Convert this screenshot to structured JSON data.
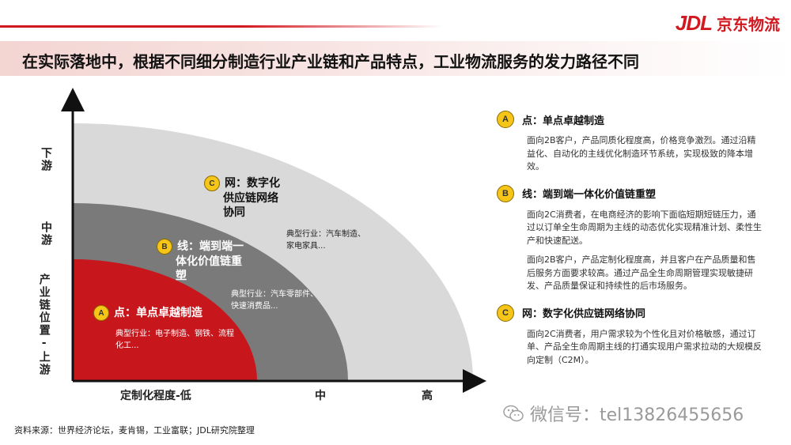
{
  "brand": {
    "logo_mark": "JDL",
    "logo_text": "京东物流",
    "brand_color": "#d31920"
  },
  "title": "在实际落地中，根据不同细分制造行业产业链和产品特点，工业物流服务的发力路径不同",
  "axes": {
    "y_top": "下游",
    "y_mid": "中游",
    "y_bottom": "产业链位置-上游",
    "x_low": "定制化程度-低",
    "x_mid": "中",
    "x_high": "高"
  },
  "zones": {
    "a": {
      "badge": "A",
      "label": "点：单点卓越制造",
      "industries": "典型行业：电子制造、钢铁、流程化工...",
      "color": "#c8161d"
    },
    "b": {
      "badge": "B",
      "label_l1": "线：端到端一",
      "label_l2": "体化价值链重",
      "label_l3": "塑",
      "industries_l1": "典型行业：汽车零部件、",
      "industries_l2": "快速消费品...",
      "color": "#7a7a7a"
    },
    "c": {
      "badge": "C",
      "label_l1": "网：数字化",
      "label_l2": "供应链网络",
      "label_l3": "协同",
      "industries_l1": "典型行业：汽车制造、",
      "industries_l2": "家电家具...",
      "color": "#d9d9d9"
    }
  },
  "panel": {
    "a": {
      "badge": "A",
      "heading": "点：单点卓越制造",
      "text": "面向2B客户，产品同质化程度高，价格竞争激烈。通过沿精益化、自动化的主线优化制造环节系统，实现极致的降本增效。"
    },
    "b": {
      "badge": "B",
      "heading": "线：端到端一体化价值链重塑",
      "text1": "面向2C消费者，在电商经济的影响下面临短期短链压力，通过以订单全生命周期为主线的动态优化实现精准计划、柔性生产和快速配送。",
      "text2": "面向2B客户，产品定制化程度高，并且客户在产品质量和售后服务方面要求较高。通过产品全生命周期管理实现敏捷研发、产品质量保证和持续性的后市场服务。"
    },
    "c": {
      "badge": "C",
      "heading": "网：数字化供应链网络协同",
      "text": "面向2C消费者，用户需求较为个性化且对价格敏感，通过订单、产品全生命周期主线的打通实现用户需求拉动的大规模反向定制（C2M）。"
    }
  },
  "source": "资料来源：世界经济论坛，麦肯锡，工业富联；JDL研究院整理",
  "watermark": "微信号：tel13826455656"
}
